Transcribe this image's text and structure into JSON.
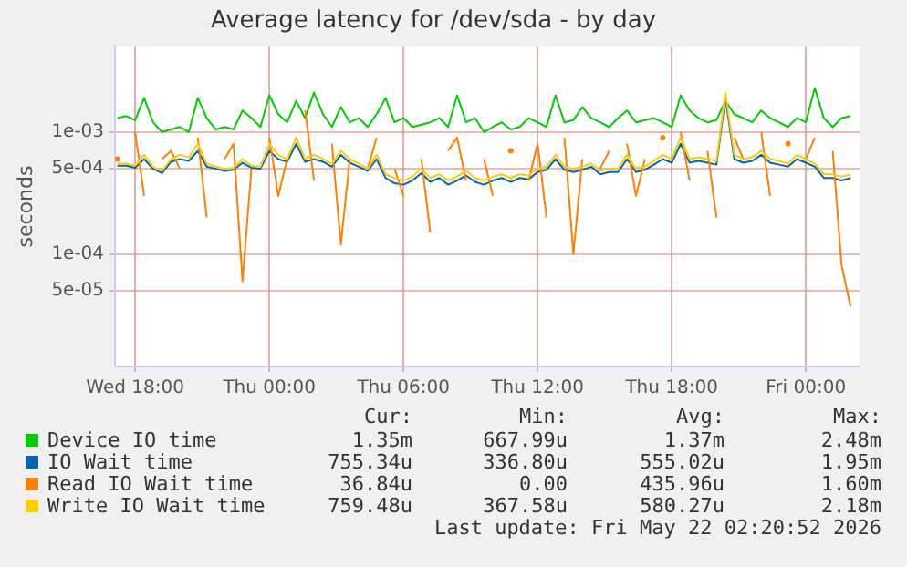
{
  "chart_data": {
    "type": "line",
    "title": "Average latency for /dev/sda - by day",
    "ylabel": "seconds",
    "x": [
      "2026-05-20T17:12",
      "2026-05-20T17:36",
      "2026-05-20T18:00",
      "2026-05-20T18:24",
      "2026-05-20T18:48",
      "2026-05-20T19:12",
      "2026-05-20T19:36",
      "2026-05-20T20:00",
      "2026-05-20T20:24",
      "2026-05-20T20:48",
      "2026-05-20T21:12",
      "2026-05-20T21:36",
      "2026-05-20T22:00",
      "2026-05-20T22:24",
      "2026-05-20T22:48",
      "2026-05-20T23:12",
      "2026-05-20T23:36",
      "2026-05-21T00:00",
      "2026-05-21T00:24",
      "2026-05-21T00:48",
      "2026-05-21T01:12",
      "2026-05-21T01:36",
      "2026-05-21T02:00",
      "2026-05-21T02:24",
      "2026-05-21T02:48",
      "2026-05-21T03:12",
      "2026-05-21T03:36",
      "2026-05-21T04:00",
      "2026-05-21T04:24",
      "2026-05-21T04:48",
      "2026-05-21T05:12",
      "2026-05-21T05:36",
      "2026-05-21T06:00",
      "2026-05-21T06:24",
      "2026-05-21T06:48",
      "2026-05-21T07:12",
      "2026-05-21T07:36",
      "2026-05-21T08:00",
      "2026-05-21T08:24",
      "2026-05-21T08:48",
      "2026-05-21T09:12",
      "2026-05-21T09:36",
      "2026-05-21T10:00",
      "2026-05-21T10:24",
      "2026-05-21T10:48",
      "2026-05-21T11:12",
      "2026-05-21T11:36",
      "2026-05-21T12:00",
      "2026-05-21T12:24",
      "2026-05-21T12:48",
      "2026-05-21T13:12",
      "2026-05-21T13:36",
      "2026-05-21T14:00",
      "2026-05-21T14:24",
      "2026-05-21T14:48",
      "2026-05-21T15:12",
      "2026-05-21T15:36",
      "2026-05-21T16:00",
      "2026-05-21T16:24",
      "2026-05-21T16:48",
      "2026-05-21T17:12",
      "2026-05-21T17:36",
      "2026-05-21T18:00",
      "2026-05-21T18:24",
      "2026-05-21T18:48",
      "2026-05-21T19:12",
      "2026-05-21T19:36",
      "2026-05-21T20:00",
      "2026-05-21T20:24",
      "2026-05-21T20:48",
      "2026-05-21T21:12",
      "2026-05-21T21:36",
      "2026-05-21T22:00",
      "2026-05-21T22:24",
      "2026-05-21T22:48",
      "2026-05-21T23:12",
      "2026-05-21T23:36",
      "2026-05-22T00:00",
      "2026-05-22T00:24",
      "2026-05-22T00:48",
      "2026-05-22T01:12",
      "2026-05-22T01:36",
      "2026-05-22T02:00"
    ],
    "series": [
      {
        "name": "Device IO time",
        "color": "#00cc00",
        "values": [
          0.0013,
          0.00135,
          0.00125,
          0.0019,
          0.0012,
          0.001,
          0.00105,
          0.0011,
          0.001,
          0.0019,
          0.0013,
          0.00105,
          0.0011,
          0.00105,
          0.0015,
          0.0013,
          0.0011,
          0.002,
          0.0014,
          0.0012,
          0.0018,
          0.0013,
          0.0021,
          0.0014,
          0.0011,
          0.0016,
          0.0012,
          0.0013,
          0.0011,
          0.0014,
          0.0019,
          0.0012,
          0.0013,
          0.0011,
          0.00115,
          0.0012,
          0.0013,
          0.0011,
          0.002,
          0.0012,
          0.0013,
          0.001,
          0.0011,
          0.0012,
          0.00105,
          0.0011,
          0.0013,
          0.0012,
          0.0011,
          0.002,
          0.0012,
          0.00125,
          0.0016,
          0.0013,
          0.0012,
          0.0011,
          0.0013,
          0.0015,
          0.0012,
          0.00125,
          0.0013,
          0.0012,
          0.0011,
          0.002,
          0.0015,
          0.0013,
          0.0012,
          0.00125,
          0.0018,
          0.0014,
          0.0013,
          0.0012,
          0.0015,
          0.0013,
          0.0012,
          0.0011,
          0.0013,
          0.0012,
          0.0023,
          0.0013,
          0.0011,
          0.0013,
          0.00135
        ]
      },
      {
        "name": "IO Wait time",
        "color": "#0066b3",
        "values": [
          0.00053,
          0.00053,
          0.00051,
          0.0006,
          0.0005,
          0.00046,
          0.00057,
          0.0006,
          0.00058,
          0.0007,
          0.00052,
          0.0005,
          0.00048,
          0.00049,
          0.00056,
          0.00051,
          0.0005,
          0.0007,
          0.0006,
          0.00057,
          0.0008,
          0.00057,
          0.0006,
          0.00057,
          0.00052,
          0.00065,
          0.00056,
          0.00052,
          0.00048,
          0.0006,
          0.00042,
          0.00038,
          0.00037,
          0.0004,
          0.00046,
          0.00039,
          0.00042,
          0.00037,
          0.0004,
          0.00044,
          0.00039,
          0.00037,
          0.0004,
          0.00042,
          0.00039,
          0.00042,
          0.00041,
          0.00047,
          0.00049,
          0.0006,
          0.00049,
          0.00047,
          0.00049,
          0.00052,
          0.00045,
          0.00047,
          0.00047,
          0.0006,
          0.00047,
          0.00049,
          0.00054,
          0.0006,
          0.00056,
          0.0008,
          0.00056,
          0.00058,
          0.00056,
          0.00054,
          0.0019,
          0.0006,
          0.00056,
          0.00058,
          0.00065,
          0.00056,
          0.00054,
          0.00052,
          0.0006,
          0.00056,
          0.00052,
          0.00042,
          0.00042,
          0.0004,
          0.00042
        ]
      },
      {
        "name": "Read IO Wait time",
        "color": "#ff8000",
        "values": [
          0.0006,
          null,
          0.001,
          0.0003,
          null,
          0.0006,
          0.0007,
          0.0005,
          null,
          0.0009,
          0.0002,
          null,
          0.0006,
          0.0008,
          6e-05,
          0.0005,
          null,
          0.0009,
          0.0003,
          0.0006,
          null,
          0.0015,
          0.0004,
          null,
          0.0008,
          0.00012,
          0.0006,
          null,
          0.0005,
          0.0009,
          null,
          0.0005,
          0.0003,
          null,
          0.0006,
          0.00015,
          null,
          0.0007,
          0.0009,
          0.0004,
          null,
          0.0006,
          0.0003,
          null,
          0.0007,
          null,
          0.0004,
          0.0008,
          0.0002,
          null,
          0.0009,
          0.0001,
          0.0006,
          null,
          0.0005,
          0.0007,
          null,
          0.0008,
          0.0003,
          0.0006,
          null,
          0.0009,
          null,
          0.001,
          0.0004,
          null,
          0.0007,
          0.0002,
          null,
          0.0009,
          0.0006,
          null,
          0.001,
          0.0003,
          null,
          0.0008,
          null,
          0.0006,
          0.0009,
          null,
          0.0007,
          8e-05,
          3.7e-05
        ]
      },
      {
        "name": "Write IO Wait time",
        "color": "#ffcc00",
        "values": [
          0.00055,
          0.00055,
          0.00053,
          0.00065,
          0.00052,
          0.00048,
          0.0006,
          0.00065,
          0.00062,
          0.0008,
          0.00055,
          0.00052,
          0.0005,
          0.00051,
          0.0006,
          0.00053,
          0.00052,
          0.0008,
          0.00065,
          0.0006,
          0.0009,
          0.0006,
          0.00065,
          0.0006,
          0.00055,
          0.0007,
          0.0006,
          0.00055,
          0.0005,
          0.00065,
          0.00045,
          0.00042,
          0.0004,
          0.00043,
          0.0005,
          0.00042,
          0.00045,
          0.0004,
          0.00043,
          0.00048,
          0.00042,
          0.0004,
          0.00043,
          0.00045,
          0.00042,
          0.00045,
          0.00044,
          0.0005,
          0.00052,
          0.00065,
          0.00052,
          0.0005,
          0.00052,
          0.00055,
          0.00048,
          0.0005,
          0.0005,
          0.00065,
          0.0005,
          0.00052,
          0.00058,
          0.00065,
          0.0006,
          0.0009,
          0.0006,
          0.00062,
          0.0006,
          0.00058,
          0.0021,
          0.00065,
          0.0006,
          0.00062,
          0.0007,
          0.0006,
          0.00058,
          0.00055,
          0.00065,
          0.0006,
          0.00055,
          0.00045,
          0.00045,
          0.00043,
          0.00045
        ]
      }
    ],
    "xlim": [
      "2026-05-20T17:06",
      "2026-05-22T02:24"
    ],
    "xticks": [
      {
        "value": "2026-05-20T18:00",
        "label": "Wed 18:00"
      },
      {
        "value": "2026-05-21T00:00",
        "label": "Thu 00:00"
      },
      {
        "value": "2026-05-21T06:00",
        "label": "Thu 06:00"
      },
      {
        "value": "2026-05-21T12:00",
        "label": "Thu 12:00"
      },
      {
        "value": "2026-05-21T18:00",
        "label": "Thu 18:00"
      },
      {
        "value": "2026-05-22T00:00",
        "label": "Fri 00:00"
      }
    ],
    "log": "y",
    "ylim": [
      1.2e-05,
      0.005
    ],
    "yticks": [
      {
        "value": 5e-05,
        "label": "5e-05"
      },
      {
        "value": 0.0001,
        "label": "1e-04"
      },
      {
        "value": 0.0005,
        "label": "5e-04"
      },
      {
        "value": 0.001,
        "label": "1e-03"
      }
    ],
    "grid": true,
    "legend": "bottom",
    "marker": "none",
    "line_style": "solid",
    "annotations": [
      "Cur:",
      "Min:",
      "Avg:",
      "Max:",
      "1.35m",
      "667.99u",
      "1.37m",
      "2.48m",
      "755.34u",
      "336.80u",
      "555.02u",
      "1.95m",
      "36.84u",
      "0.00",
      "435.96u",
      "1.60m",
      "759.48u",
      "367.58u",
      "580.27u",
      "2.18m",
      "Last update: Fri May 22 02:20:52 2026"
    ]
  }
}
